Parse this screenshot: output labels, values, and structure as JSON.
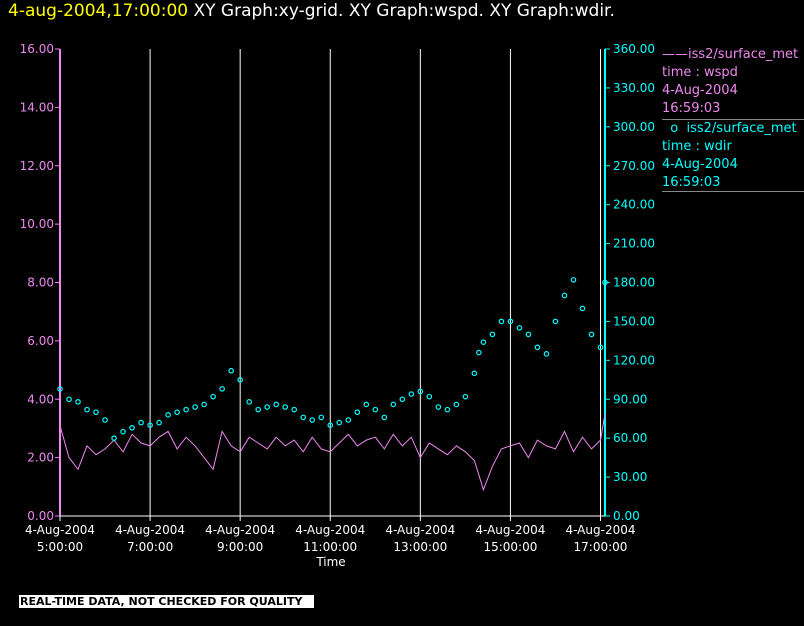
{
  "header": {
    "date_label": "4-aug-2004,17:00:00",
    "graphs_label": "XY Graph:xy-grid.  XY Graph:wspd.  XY Graph:wdir."
  },
  "legend": {
    "wspd": {
      "line1": "iss2/surface_met",
      "line2": "time : wspd",
      "line3": "4-Aug-2004",
      "line4": "16:59:03",
      "marker": "——"
    },
    "wdir": {
      "line1": "iss2/surface_met",
      "line2": "time : wdir",
      "line3": "4-Aug-2004",
      "line4": "16:59:03",
      "marker": "o"
    }
  },
  "footer": {
    "disclaimer": "REAL-TIME DATA, NOT CHECKED FOR QUALITY"
  },
  "colors": {
    "wspd": "#ee88ee",
    "wdir": "#00ffff",
    "grid": "#ffffff",
    "title_date": "#ffff00"
  },
  "chart_data": {
    "type": "line",
    "xlabel": "Time",
    "xlim": [
      5.0,
      17.1
    ],
    "x_ticks": [
      {
        "x": 5,
        "date": "4-Aug-2004",
        "time": "5:00:00"
      },
      {
        "x": 7,
        "date": "4-Aug-2004",
        "time": "7:00:00"
      },
      {
        "x": 9,
        "date": "4-Aug-2004",
        "time": "9:00:00"
      },
      {
        "x": 11,
        "date": "4-Aug-2004",
        "time": "11:00:00"
      },
      {
        "x": 13,
        "date": "4-Aug-2004",
        "time": "13:00:00"
      },
      {
        "x": 15,
        "date": "4-Aug-2004",
        "time": "15:00:00"
      },
      {
        "x": 17,
        "date": "4-Aug-2004",
        "time": "17:00:00"
      }
    ],
    "grid_x": [
      7,
      9,
      11,
      13,
      15,
      17
    ],
    "y_left": {
      "ylim": [
        0,
        16
      ],
      "ticks": [
        "0.00",
        "2.00",
        "4.00",
        "6.00",
        "8.00",
        "10.00",
        "12.00",
        "14.00",
        "16.00"
      ]
    },
    "y_right": {
      "ylim": [
        0,
        360
      ],
      "ticks": [
        "0.00",
        "30.00",
        "60.00",
        "90.00",
        "120.00",
        "150.00",
        "180.00",
        "210.00",
        "240.00",
        "270.00",
        "300.00",
        "330.00",
        "360.00"
      ]
    },
    "series": [
      {
        "name": "iss2/surface_met time : wspd",
        "axis": "left",
        "style": "line",
        "x": [
          5.0,
          5.2,
          5.4,
          5.6,
          5.8,
          6.0,
          6.2,
          6.4,
          6.6,
          6.8,
          7.0,
          7.2,
          7.4,
          7.6,
          7.8,
          8.0,
          8.2,
          8.4,
          8.6,
          8.8,
          9.0,
          9.2,
          9.4,
          9.6,
          9.8,
          10.0,
          10.2,
          10.4,
          10.6,
          10.8,
          11.0,
          11.2,
          11.4,
          11.6,
          11.8,
          12.0,
          12.2,
          12.4,
          12.6,
          12.8,
          13.0,
          13.2,
          13.4,
          13.6,
          13.8,
          14.0,
          14.2,
          14.4,
          14.6,
          14.8,
          15.0,
          15.2,
          15.4,
          15.6,
          15.8,
          16.0,
          16.2,
          16.4,
          16.6,
          16.8,
          17.0,
          17.1
        ],
        "values": [
          3.1,
          2.0,
          1.6,
          2.4,
          2.1,
          2.3,
          2.6,
          2.2,
          2.8,
          2.5,
          2.4,
          2.7,
          2.9,
          2.3,
          2.7,
          2.4,
          2.0,
          1.6,
          2.9,
          2.4,
          2.2,
          2.7,
          2.5,
          2.3,
          2.7,
          2.4,
          2.6,
          2.2,
          2.7,
          2.3,
          2.2,
          2.5,
          2.8,
          2.4,
          2.6,
          2.7,
          2.3,
          2.8,
          2.4,
          2.7,
          2.0,
          2.5,
          2.3,
          2.1,
          2.4,
          2.2,
          1.9,
          0.9,
          1.7,
          2.3,
          2.4,
          2.5,
          2.0,
          2.6,
          2.4,
          2.3,
          2.9,
          2.2,
          2.7,
          2.3,
          2.6,
          3.5
        ]
      },
      {
        "name": "iss2/surface_met time : wdir",
        "axis": "right",
        "style": "scatter",
        "x": [
          5.0,
          5.2,
          5.4,
          5.6,
          5.8,
          6.0,
          6.2,
          6.4,
          6.6,
          6.8,
          7.0,
          7.2,
          7.4,
          7.6,
          7.8,
          8.0,
          8.2,
          8.4,
          8.6,
          8.8,
          9.0,
          9.2,
          9.4,
          9.6,
          9.8,
          10.0,
          10.2,
          10.4,
          10.6,
          10.8,
          11.0,
          11.2,
          11.4,
          11.6,
          11.8,
          12.0,
          12.2,
          12.4,
          12.6,
          12.8,
          13.0,
          13.2,
          13.4,
          13.6,
          13.8,
          14.0,
          14.2,
          14.3,
          14.4,
          14.6,
          14.8,
          15.0,
          15.2,
          15.4,
          15.6,
          15.8,
          16.0,
          16.2,
          16.4,
          16.6,
          16.8,
          17.0,
          17.1
        ],
        "values": [
          98,
          90,
          88,
          82,
          80,
          74,
          60,
          65,
          68,
          72,
          70,
          72,
          78,
          80,
          82,
          84,
          86,
          92,
          98,
          112,
          105,
          88,
          82,
          84,
          86,
          84,
          82,
          76,
          74,
          76,
          70,
          72,
          74,
          80,
          86,
          82,
          76,
          86,
          90,
          94,
          96,
          92,
          84,
          82,
          86,
          92,
          110,
          126,
          134,
          140,
          150,
          150,
          145,
          140,
          130,
          125,
          150,
          170,
          182,
          160,
          140,
          130,
          180
        ]
      }
    ]
  }
}
